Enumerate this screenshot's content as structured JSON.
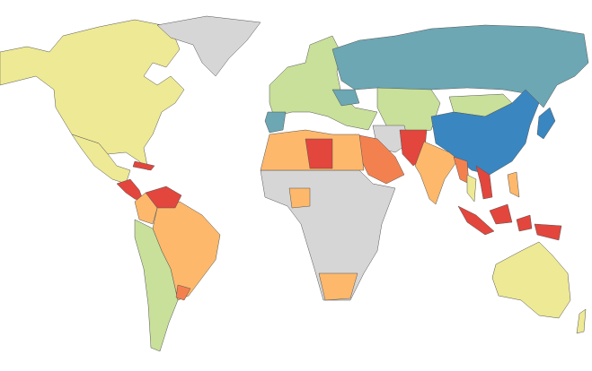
{
  "map": {
    "type": "choropleth",
    "palette": [
      "#eee994",
      "#c8e09a",
      "#6ca7b3",
      "#3a86c0",
      "#fdb86b",
      "#f3814f",
      "#e2463d",
      "#d6d6d6"
    ]
  }
}
